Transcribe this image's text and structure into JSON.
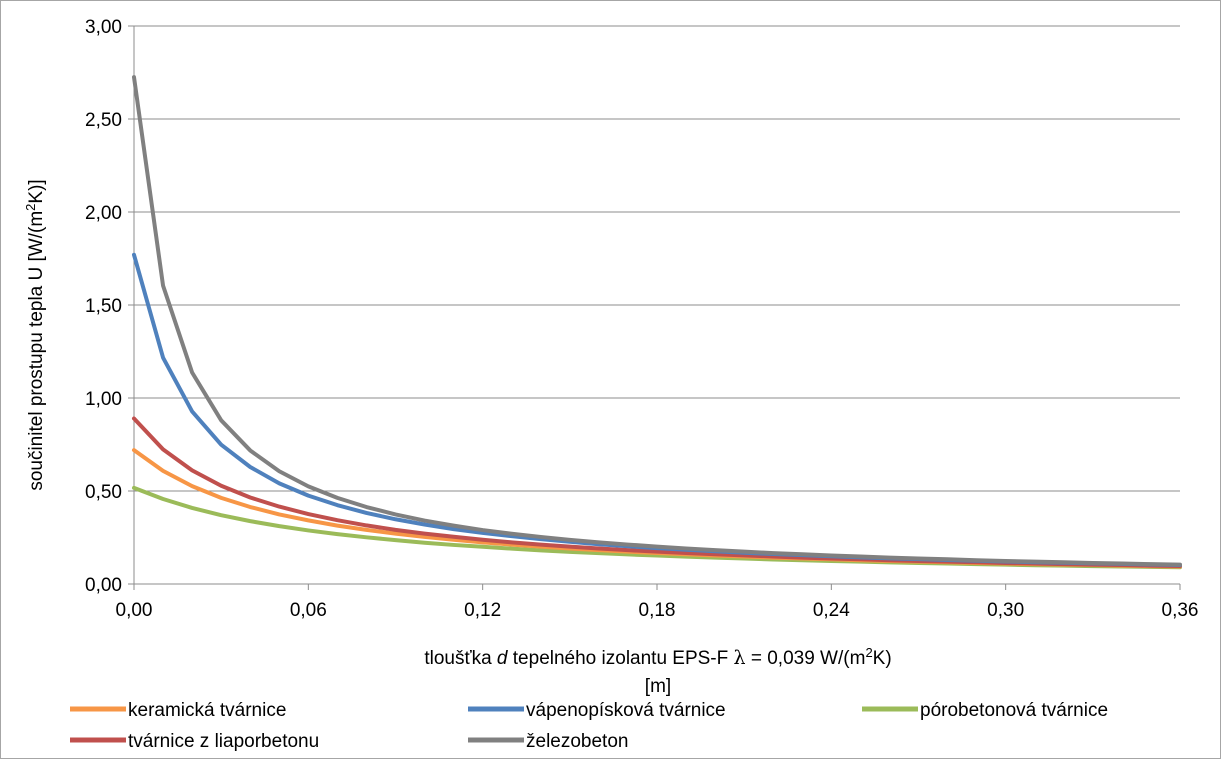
{
  "chart_data": {
    "type": "line",
    "title": "",
    "ylabel": "součinitel prostupu tepla U [W/(m²K)]",
    "ylabel_parts": [
      "součinitel prostupu tepla U [W/(m",
      "2",
      "K)]"
    ],
    "xlabel_line1_parts": [
      "tloušťka ",
      "d",
      " tepelného izolantu EPS-F ",
      "λ",
      " = 0,039 W/(m",
      "2",
      "K)"
    ],
    "xlabel_line2": "[m]",
    "xlim": [
      0,
      0.36
    ],
    "ylim": [
      0,
      3
    ],
    "x_ticks": [
      "0,00",
      "0,06",
      "0,12",
      "0,18",
      "0,24",
      "0,30",
      "0,36"
    ],
    "y_ticks": [
      "0,00",
      "0,50",
      "1,00",
      "1,50",
      "2,00",
      "2,50",
      "3,00"
    ],
    "grid": "horizontal",
    "legend_position": "bottom",
    "x": [
      0,
      0.01,
      0.02,
      0.03,
      0.04,
      0.05,
      0.06,
      0.07,
      0.08,
      0.09,
      0.1,
      0.11,
      0.12,
      0.13,
      0.14,
      0.15,
      0.16,
      0.17,
      0.18,
      0.19,
      0.2,
      0.21,
      0.22,
      0.23,
      0.24,
      0.25,
      0.26,
      0.27,
      0.28,
      0.29,
      0.3,
      0.31,
      0.32,
      0.33,
      0.34,
      0.35,
      0.36
    ],
    "series": [
      {
        "name": "keramická tvárnice",
        "color": "#F79646",
        "R0": 1.389
      },
      {
        "name": "vápenopísková tvárnice",
        "color": "#4F81BD",
        "R0": 0.565
      },
      {
        "name": "pórobetonová tvárnice",
        "color": "#9BBB59",
        "R0": 1.934
      },
      {
        "name": "tvárnice z liaporbetonu",
        "color": "#C0504D",
        "R0": 1.124
      },
      {
        "name": "železobeton",
        "color": "#808080",
        "R0": 0.367
      }
    ],
    "lambda": 0.039
  }
}
